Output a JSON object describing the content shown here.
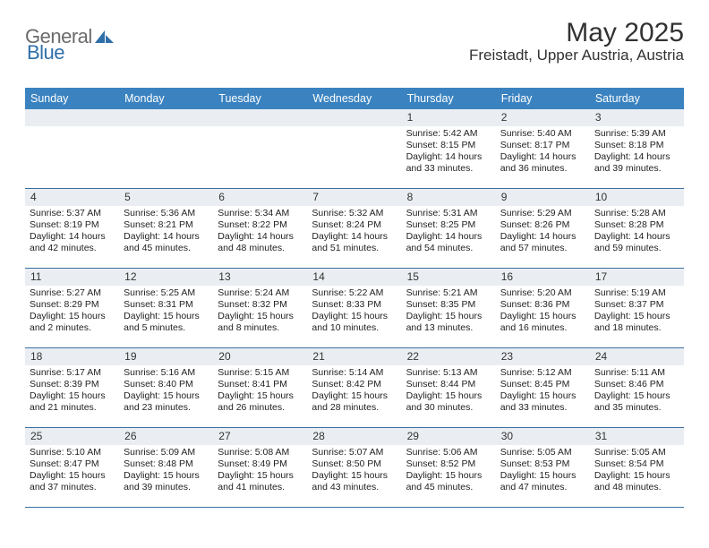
{
  "brand": {
    "part1": "General",
    "part2": "Blue"
  },
  "title": "May 2025",
  "location": "Freistadt, Upper Austria, Austria",
  "weekdays": [
    "Sunday",
    "Monday",
    "Tuesday",
    "Wednesday",
    "Thursday",
    "Friday",
    "Saturday"
  ],
  "colors": {
    "header_bg": "#3b83c0",
    "row_border": "#3b6fa0",
    "daynum_bg": "#eaeef2",
    "logo_gray": "#6b6b6b",
    "logo_blue": "#2f6fa8"
  },
  "weeks": [
    [
      {
        "blank": true
      },
      {
        "blank": true
      },
      {
        "blank": true
      },
      {
        "blank": true
      },
      {
        "n": "1",
        "sr": "Sunrise: 5:42 AM",
        "ss": "Sunset: 8:15 PM",
        "d1": "Daylight: 14 hours",
        "d2": "and 33 minutes."
      },
      {
        "n": "2",
        "sr": "Sunrise: 5:40 AM",
        "ss": "Sunset: 8:17 PM",
        "d1": "Daylight: 14 hours",
        "d2": "and 36 minutes."
      },
      {
        "n": "3",
        "sr": "Sunrise: 5:39 AM",
        "ss": "Sunset: 8:18 PM",
        "d1": "Daylight: 14 hours",
        "d2": "and 39 minutes."
      }
    ],
    [
      {
        "n": "4",
        "sr": "Sunrise: 5:37 AM",
        "ss": "Sunset: 8:19 PM",
        "d1": "Daylight: 14 hours",
        "d2": "and 42 minutes."
      },
      {
        "n": "5",
        "sr": "Sunrise: 5:36 AM",
        "ss": "Sunset: 8:21 PM",
        "d1": "Daylight: 14 hours",
        "d2": "and 45 minutes."
      },
      {
        "n": "6",
        "sr": "Sunrise: 5:34 AM",
        "ss": "Sunset: 8:22 PM",
        "d1": "Daylight: 14 hours",
        "d2": "and 48 minutes."
      },
      {
        "n": "7",
        "sr": "Sunrise: 5:32 AM",
        "ss": "Sunset: 8:24 PM",
        "d1": "Daylight: 14 hours",
        "d2": "and 51 minutes."
      },
      {
        "n": "8",
        "sr": "Sunrise: 5:31 AM",
        "ss": "Sunset: 8:25 PM",
        "d1": "Daylight: 14 hours",
        "d2": "and 54 minutes."
      },
      {
        "n": "9",
        "sr": "Sunrise: 5:29 AM",
        "ss": "Sunset: 8:26 PM",
        "d1": "Daylight: 14 hours",
        "d2": "and 57 minutes."
      },
      {
        "n": "10",
        "sr": "Sunrise: 5:28 AM",
        "ss": "Sunset: 8:28 PM",
        "d1": "Daylight: 14 hours",
        "d2": "and 59 minutes."
      }
    ],
    [
      {
        "n": "11",
        "sr": "Sunrise: 5:27 AM",
        "ss": "Sunset: 8:29 PM",
        "d1": "Daylight: 15 hours",
        "d2": "and 2 minutes."
      },
      {
        "n": "12",
        "sr": "Sunrise: 5:25 AM",
        "ss": "Sunset: 8:31 PM",
        "d1": "Daylight: 15 hours",
        "d2": "and 5 minutes."
      },
      {
        "n": "13",
        "sr": "Sunrise: 5:24 AM",
        "ss": "Sunset: 8:32 PM",
        "d1": "Daylight: 15 hours",
        "d2": "and 8 minutes."
      },
      {
        "n": "14",
        "sr": "Sunrise: 5:22 AM",
        "ss": "Sunset: 8:33 PM",
        "d1": "Daylight: 15 hours",
        "d2": "and 10 minutes."
      },
      {
        "n": "15",
        "sr": "Sunrise: 5:21 AM",
        "ss": "Sunset: 8:35 PM",
        "d1": "Daylight: 15 hours",
        "d2": "and 13 minutes."
      },
      {
        "n": "16",
        "sr": "Sunrise: 5:20 AM",
        "ss": "Sunset: 8:36 PM",
        "d1": "Daylight: 15 hours",
        "d2": "and 16 minutes."
      },
      {
        "n": "17",
        "sr": "Sunrise: 5:19 AM",
        "ss": "Sunset: 8:37 PM",
        "d1": "Daylight: 15 hours",
        "d2": "and 18 minutes."
      }
    ],
    [
      {
        "n": "18",
        "sr": "Sunrise: 5:17 AM",
        "ss": "Sunset: 8:39 PM",
        "d1": "Daylight: 15 hours",
        "d2": "and 21 minutes."
      },
      {
        "n": "19",
        "sr": "Sunrise: 5:16 AM",
        "ss": "Sunset: 8:40 PM",
        "d1": "Daylight: 15 hours",
        "d2": "and 23 minutes."
      },
      {
        "n": "20",
        "sr": "Sunrise: 5:15 AM",
        "ss": "Sunset: 8:41 PM",
        "d1": "Daylight: 15 hours",
        "d2": "and 26 minutes."
      },
      {
        "n": "21",
        "sr": "Sunrise: 5:14 AM",
        "ss": "Sunset: 8:42 PM",
        "d1": "Daylight: 15 hours",
        "d2": "and 28 minutes."
      },
      {
        "n": "22",
        "sr": "Sunrise: 5:13 AM",
        "ss": "Sunset: 8:44 PM",
        "d1": "Daylight: 15 hours",
        "d2": "and 30 minutes."
      },
      {
        "n": "23",
        "sr": "Sunrise: 5:12 AM",
        "ss": "Sunset: 8:45 PM",
        "d1": "Daylight: 15 hours",
        "d2": "and 33 minutes."
      },
      {
        "n": "24",
        "sr": "Sunrise: 5:11 AM",
        "ss": "Sunset: 8:46 PM",
        "d1": "Daylight: 15 hours",
        "d2": "and 35 minutes."
      }
    ],
    [
      {
        "n": "25",
        "sr": "Sunrise: 5:10 AM",
        "ss": "Sunset: 8:47 PM",
        "d1": "Daylight: 15 hours",
        "d2": "and 37 minutes."
      },
      {
        "n": "26",
        "sr": "Sunrise: 5:09 AM",
        "ss": "Sunset: 8:48 PM",
        "d1": "Daylight: 15 hours",
        "d2": "and 39 minutes."
      },
      {
        "n": "27",
        "sr": "Sunrise: 5:08 AM",
        "ss": "Sunset: 8:49 PM",
        "d1": "Daylight: 15 hours",
        "d2": "and 41 minutes."
      },
      {
        "n": "28",
        "sr": "Sunrise: 5:07 AM",
        "ss": "Sunset: 8:50 PM",
        "d1": "Daylight: 15 hours",
        "d2": "and 43 minutes."
      },
      {
        "n": "29",
        "sr": "Sunrise: 5:06 AM",
        "ss": "Sunset: 8:52 PM",
        "d1": "Daylight: 15 hours",
        "d2": "and 45 minutes."
      },
      {
        "n": "30",
        "sr": "Sunrise: 5:05 AM",
        "ss": "Sunset: 8:53 PM",
        "d1": "Daylight: 15 hours",
        "d2": "and 47 minutes."
      },
      {
        "n": "31",
        "sr": "Sunrise: 5:05 AM",
        "ss": "Sunset: 8:54 PM",
        "d1": "Daylight: 15 hours",
        "d2": "and 48 minutes."
      }
    ]
  ]
}
